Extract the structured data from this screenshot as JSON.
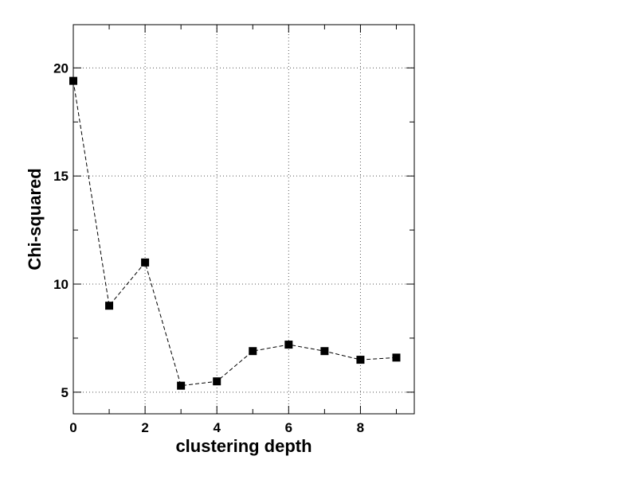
{
  "chart_data": {
    "type": "line",
    "title": "",
    "xlabel": "clustering depth",
    "ylabel": "Chi-squared",
    "xlim": [
      0,
      9.5
    ],
    "ylim": [
      4,
      22
    ],
    "xticks": [
      0,
      2,
      4,
      6,
      8
    ],
    "yticks": [
      5,
      10,
      15,
      20
    ],
    "grid": true,
    "series": [
      {
        "x": [
          0,
          1,
          2,
          3,
          4,
          5,
          6,
          7,
          8,
          9
        ],
        "values": [
          19.4,
          9.0,
          11.0,
          5.3,
          5.5,
          6.9,
          7.2,
          6.9,
          6.5,
          6.6
        ],
        "marker": "square",
        "line_style": "dashed",
        "color": "#000000"
      }
    ]
  }
}
